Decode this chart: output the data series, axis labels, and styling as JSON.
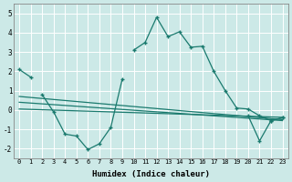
{
  "background_color": "#cce9e7",
  "grid_color": "#ffffff",
  "line_color": "#1a7a6e",
  "x_label": "Humidex (Indice chaleur)",
  "ylim": [
    -2.5,
    5.5
  ],
  "xlim": [
    -0.5,
    23.5
  ],
  "yticks": [
    -2,
    -1,
    0,
    1,
    2,
    3,
    4,
    5
  ],
  "xticks": [
    0,
    1,
    2,
    3,
    4,
    5,
    6,
    7,
    8,
    9,
    10,
    11,
    12,
    13,
    14,
    15,
    16,
    17,
    18,
    19,
    20,
    21,
    22,
    23
  ],
  "series1_x": [
    0,
    1,
    10,
    11,
    12,
    13,
    14,
    15,
    16,
    17,
    18,
    19,
    20,
    21,
    22,
    23
  ],
  "series1_y": [
    2.1,
    1.7,
    3.1,
    3.5,
    4.8,
    3.8,
    4.05,
    3.25,
    3.3,
    2.0,
    1.0,
    0.1,
    0.05,
    -0.3,
    -0.55,
    -0.4
  ],
  "series2_x": [
    2,
    3,
    4,
    5,
    6,
    7,
    8,
    9
  ],
  "series2_y": [
    0.8,
    -0.1,
    -1.25,
    -1.35,
    -2.05,
    -1.75,
    -0.9,
    1.6
  ],
  "line1_x": [
    0,
    23
  ],
  "line1_y": [
    0.7,
    -0.5
  ],
  "line2_x": [
    0,
    23
  ],
  "line2_y": [
    0.4,
    -0.55
  ],
  "line3_x": [
    0,
    23
  ],
  "line3_y": [
    0.05,
    -0.38
  ],
  "series5_x": [
    20,
    21,
    22,
    23
  ],
  "series5_y": [
    -0.3,
    -1.6,
    -0.55,
    -0.4
  ]
}
